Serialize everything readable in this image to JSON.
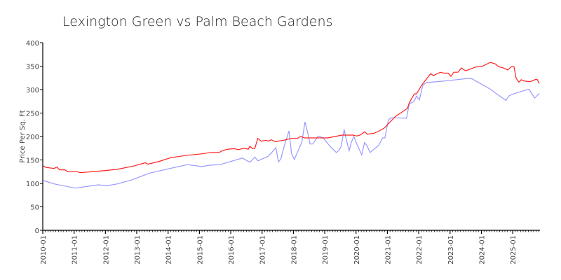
{
  "chart_data": {
    "type": "line",
    "title": "Lexington Green vs Palm Beach Gardens",
    "xlabel": "",
    "ylabel": "Price Per Sq. Ft",
    "ylim": [
      0,
      400
    ],
    "xlim": [
      2010.0,
      2025.87
    ],
    "yticks": [
      "0",
      "50",
      "100",
      "150",
      "200",
      "250",
      "300",
      "350",
      "400"
    ],
    "xticks": [
      "2010-01",
      "2011-01",
      "2012-01",
      "2013-01",
      "2014-01",
      "2015-01",
      "2016-01",
      "2017-01",
      "2018-01",
      "2019-01",
      "2020-01",
      "2021-01",
      "2022-01",
      "2023-01",
      "2024-01",
      "2025-01"
    ],
    "grid": false,
    "legend": "none",
    "series": [
      {
        "color": "#ff2020",
        "points": [
          [
            2010.02,
            137
          ],
          [
            2010.1,
            134
          ],
          [
            2010.36,
            132
          ],
          [
            2010.45,
            135
          ],
          [
            2010.54,
            129
          ],
          [
            2010.7,
            129
          ],
          [
            2010.8,
            125
          ],
          [
            2011.1,
            125
          ],
          [
            2011.2,
            123
          ],
          [
            2011.77,
            126
          ],
          [
            2012.38,
            130
          ],
          [
            2012.9,
            137
          ],
          [
            2013.27,
            144
          ],
          [
            2013.36,
            141
          ],
          [
            2013.72,
            147
          ],
          [
            2014.1,
            155
          ],
          [
            2014.62,
            160
          ],
          [
            2015.07,
            163
          ],
          [
            2015.36,
            166
          ],
          [
            2015.63,
            166
          ],
          [
            2015.74,
            170
          ],
          [
            2015.92,
            173
          ],
          [
            2016.1,
            174
          ],
          [
            2016.25,
            172
          ],
          [
            2016.41,
            175
          ],
          [
            2016.56,
            173
          ],
          [
            2016.61,
            179
          ],
          [
            2016.7,
            174
          ],
          [
            2016.77,
            175
          ],
          [
            2016.86,
            196
          ],
          [
            2016.97,
            190
          ],
          [
            2017.12,
            192
          ],
          [
            2017.2,
            190
          ],
          [
            2017.29,
            193
          ],
          [
            2017.42,
            189
          ],
          [
            2017.76,
            193
          ],
          [
            2017.94,
            196
          ],
          [
            2018.13,
            196
          ],
          [
            2018.23,
            200
          ],
          [
            2018.35,
            197
          ],
          [
            2019.1,
            197
          ],
          [
            2019.33,
            200
          ],
          [
            2019.55,
            203
          ],
          [
            2019.91,
            203
          ],
          [
            2020.02,
            201
          ],
          [
            2020.13,
            203
          ],
          [
            2020.27,
            210
          ],
          [
            2020.36,
            205
          ],
          [
            2020.58,
            207
          ],
          [
            2020.74,
            212
          ],
          [
            2020.9,
            218
          ],
          [
            2021.1,
            232
          ],
          [
            2021.26,
            243
          ],
          [
            2021.46,
            252
          ],
          [
            2021.64,
            260
          ],
          [
            2021.7,
            272
          ],
          [
            2021.86,
            291
          ],
          [
            2021.93,
            291
          ],
          [
            2022.09,
            309
          ],
          [
            2022.38,
            334
          ],
          [
            2022.47,
            330
          ],
          [
            2022.69,
            337
          ],
          [
            2022.8,
            335
          ],
          [
            2022.94,
            335
          ],
          [
            2023.03,
            328
          ],
          [
            2023.12,
            337
          ],
          [
            2023.25,
            337
          ],
          [
            2023.36,
            346
          ],
          [
            2023.5,
            340
          ],
          [
            2023.81,
            348
          ],
          [
            2024.04,
            350
          ],
          [
            2024.28,
            358
          ],
          [
            2024.44,
            355
          ],
          [
            2024.55,
            349
          ],
          [
            2024.71,
            346
          ],
          [
            2024.84,
            342
          ],
          [
            2024.96,
            349
          ],
          [
            2025.04,
            349
          ],
          [
            2025.11,
            324
          ],
          [
            2025.2,
            316
          ],
          [
            2025.27,
            321
          ],
          [
            2025.38,
            318
          ],
          [
            2025.56,
            317
          ],
          [
            2025.74,
            322
          ],
          [
            2025.78,
            322
          ],
          [
            2025.85,
            313
          ]
        ]
      },
      {
        "color": "#9999ff",
        "points": [
          [
            2010.02,
            106
          ],
          [
            2010.36,
            99
          ],
          [
            2011.03,
            90
          ],
          [
            2011.77,
            97
          ],
          [
            2012.04,
            95
          ],
          [
            2012.38,
            99
          ],
          [
            2012.82,
            107
          ],
          [
            2013.41,
            122
          ],
          [
            2014.01,
            131
          ],
          [
            2014.62,
            140
          ],
          [
            2015.07,
            136
          ],
          [
            2015.36,
            139
          ],
          [
            2015.66,
            140
          ],
          [
            2016.37,
            154
          ],
          [
            2016.61,
            145
          ],
          [
            2016.77,
            156
          ],
          [
            2016.87,
            148
          ],
          [
            2017.2,
            158
          ],
          [
            2017.44,
            176
          ],
          [
            2017.52,
            146
          ],
          [
            2017.6,
            152
          ],
          [
            2017.71,
            180
          ],
          [
            2017.86,
            212
          ],
          [
            2017.94,
            164
          ],
          [
            2018.03,
            151
          ],
          [
            2018.27,
            188
          ],
          [
            2018.37,
            231
          ],
          [
            2018.46,
            207
          ],
          [
            2018.53,
            184
          ],
          [
            2018.62,
            184
          ],
          [
            2018.79,
            201
          ],
          [
            2018.95,
            197
          ],
          [
            2019.17,
            179
          ],
          [
            2019.37,
            166
          ],
          [
            2019.45,
            170
          ],
          [
            2019.52,
            178
          ],
          [
            2019.62,
            215
          ],
          [
            2019.69,
            193
          ],
          [
            2019.78,
            170
          ],
          [
            2019.85,
            188
          ],
          [
            2019.93,
            200
          ],
          [
            2020.02,
            185
          ],
          [
            2020.18,
            161
          ],
          [
            2020.27,
            187
          ],
          [
            2020.34,
            181
          ],
          [
            2020.45,
            166
          ],
          [
            2020.73,
            182
          ],
          [
            2020.85,
            197
          ],
          [
            2020.92,
            197
          ],
          [
            2021.03,
            235
          ],
          [
            2021.12,
            240
          ],
          [
            2021.61,
            239
          ],
          [
            2021.7,
            270
          ],
          [
            2021.84,
            274
          ],
          [
            2021.93,
            286
          ],
          [
            2022.02,
            278
          ],
          [
            2022.13,
            309
          ],
          [
            2022.24,
            315
          ],
          [
            2022.91,
            319
          ],
          [
            2023.61,
            324
          ],
          [
            2023.7,
            323
          ],
          [
            2024.26,
            302
          ],
          [
            2024.78,
            277
          ],
          [
            2024.89,
            287
          ],
          [
            2025.07,
            292
          ],
          [
            2025.52,
            301
          ],
          [
            2025.7,
            282
          ],
          [
            2025.85,
            292
          ]
        ]
      }
    ]
  }
}
